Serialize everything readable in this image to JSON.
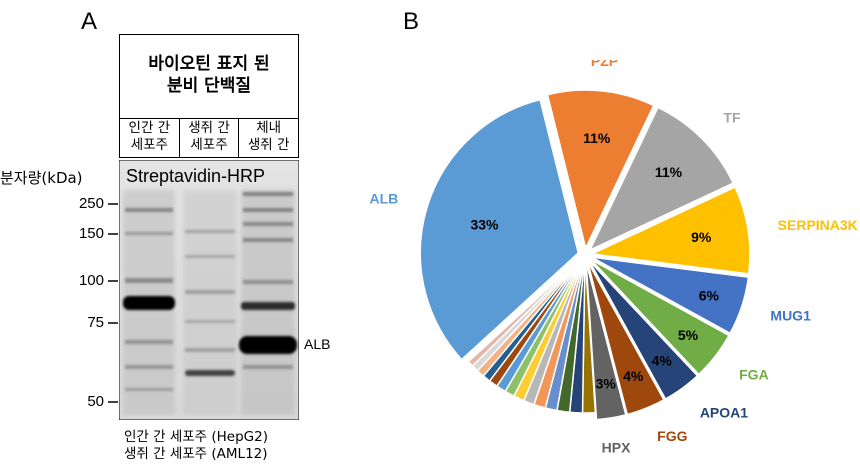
{
  "panel_a": {
    "letter": "A",
    "title_line1": "바이오틴 표지 된",
    "title_line2": "분비 단백질",
    "lanes": [
      {
        "line1": "인간 간",
        "line2": "세포주"
      },
      {
        "line1": "생쥐 간",
        "line2": "세포주"
      },
      {
        "line1": "체내",
        "line2": "생쥐 간"
      }
    ],
    "mw_label": "분자량(kDa)",
    "blot_label": "Streptavidin-HRP",
    "markers": [
      "250",
      "150",
      "100",
      "75",
      "50"
    ],
    "band_label": "ALB",
    "footnote_line1": "인간 간 세포주 (HepG2)",
    "footnote_line2": "생쥐 간 세포주 (AML12)"
  },
  "panel_b": {
    "letter": "B"
  },
  "chart_data": {
    "type": "pie",
    "slices": [
      {
        "name": "PZP",
        "value": 11,
        "label": "11%",
        "color": "#ED7D31"
      },
      {
        "name": "TF",
        "value": 11,
        "label": "11%",
        "color": "#A5A5A5"
      },
      {
        "name": "SERPINA3K",
        "value": 9,
        "label": "9%",
        "color": "#FFC000"
      },
      {
        "name": "MUG1",
        "value": 6,
        "label": "6%",
        "color": "#4472C4"
      },
      {
        "name": "FGA",
        "value": 5,
        "label": "5%",
        "color": "#70AD47"
      },
      {
        "name": "APOA1",
        "value": 4,
        "label": "4%",
        "color": "#264478"
      },
      {
        "name": "FGG",
        "value": 4,
        "label": "4%",
        "color": "#9E480E"
      },
      {
        "name": "HPX",
        "value": 3,
        "label": "3%",
        "color": "#636363"
      },
      {
        "name": "",
        "value": 1.3,
        "label": "",
        "color": "#997300"
      },
      {
        "name": "",
        "value": 1.3,
        "label": "",
        "color": "#264478"
      },
      {
        "name": "",
        "value": 1.3,
        "label": "",
        "color": "#43682B"
      },
      {
        "name": "",
        "value": 1.2,
        "label": "",
        "color": "#698ED0"
      },
      {
        "name": "",
        "value": 1.2,
        "label": "",
        "color": "#F1975A"
      },
      {
        "name": "",
        "value": 1.1,
        "label": "",
        "color": "#B7B7B7"
      },
      {
        "name": "",
        "value": 1.1,
        "label": "",
        "color": "#FFCD33"
      },
      {
        "name": "",
        "value": 1.0,
        "label": "",
        "color": "#8CC168"
      },
      {
        "name": "",
        "value": 1.0,
        "label": "",
        "color": "#5B9BD5"
      },
      {
        "name": "",
        "value": 0.9,
        "label": "",
        "color": "#9E480E"
      },
      {
        "name": "",
        "value": 0.8,
        "label": "",
        "color": "#255E91"
      },
      {
        "name": "",
        "value": 0.8,
        "label": "",
        "color": "#F4B183"
      },
      {
        "name": "",
        "value": 0.7,
        "label": "",
        "color": "#D9D9D9"
      },
      {
        "name": "",
        "value": 0.6,
        "label": "",
        "color": "#E2B6A8"
      },
      {
        "name": "ALB",
        "value": 33,
        "label": "33%",
        "color": "#5B9BD5"
      }
    ]
  }
}
